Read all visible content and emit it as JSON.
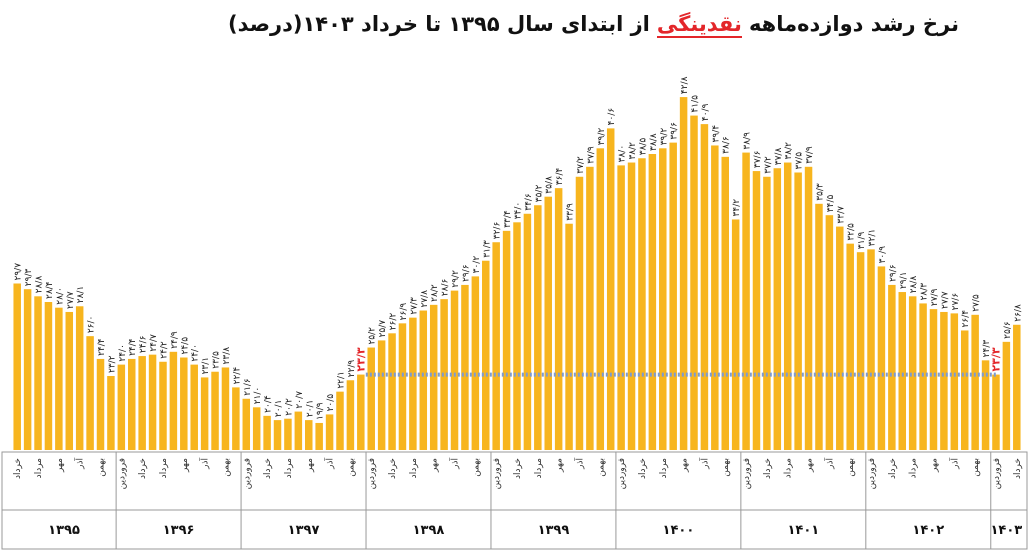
{
  "chart_data": {
    "type": "bar",
    "title": {
      "before": "نرخ رشد دوازده‌ماهه",
      "highlight": "نقدینگی",
      "after": "از ابتدای سال ۱۳۹۵ تا خرداد ۱۴۰۳(درصد)"
    },
    "categories": [
      "خرداد",
      null,
      "مرداد",
      null,
      "مهر",
      null,
      "آذر",
      null,
      "بهمن",
      null,
      "فروردین",
      null,
      "خرداد",
      null,
      "مرداد",
      null,
      "مهر",
      null,
      "آذر",
      null,
      "بهمن",
      null,
      "فروردین",
      null,
      "خرداد",
      null,
      "مرداد",
      null,
      "مهر",
      null,
      "آذر",
      null,
      "بهمن",
      null,
      "فروردین",
      null,
      "خرداد",
      null,
      "مرداد",
      null,
      "مهر",
      null,
      "آذر",
      null,
      "بهمن",
      null,
      "فروردین",
      null,
      "خرداد",
      null,
      "مرداد",
      null,
      "مهر",
      null,
      "آذر",
      null,
      "بهمن",
      null,
      "فروردین",
      null,
      "خرداد",
      null,
      "مرداد",
      null,
      "مهر",
      null,
      "آذر",
      null,
      "بهمن",
      null,
      "فروردین",
      null,
      "خرداد",
      null,
      "مرداد",
      null,
      "مهر",
      null,
      "آذر",
      null,
      "بهمن",
      null,
      "فروردین",
      null,
      "خرداد",
      null,
      "مرداد",
      null,
      "مهر",
      null,
      "آذر",
      null,
      "بهمن",
      null,
      "فروردین",
      null,
      "خرداد"
    ],
    "values": [
      29.7,
      29.3,
      28.8,
      28.4,
      28.0,
      27.7,
      28.1,
      26.0,
      24.4,
      23.2,
      24.0,
      24.4,
      24.6,
      24.7,
      24.2,
      24.9,
      24.5,
      24.0,
      23.1,
      23.5,
      23.8,
      22.4,
      21.6,
      21.0,
      20.4,
      20.1,
      20.2,
      20.7,
      20.1,
      19.9,
      20.5,
      22.1,
      22.9,
      23.3,
      25.2,
      25.7,
      26.2,
      26.9,
      27.3,
      27.8,
      28.2,
      28.6,
      29.2,
      29.6,
      30.2,
      31.3,
      32.6,
      33.4,
      34.0,
      34.6,
      35.2,
      35.8,
      36.4,
      33.9,
      37.2,
      37.9,
      39.2,
      40.6,
      38.0,
      38.2,
      38.5,
      38.8,
      39.2,
      39.6,
      42.8,
      41.5,
      40.9,
      39.4,
      38.6,
      34.2,
      38.9,
      37.6,
      37.2,
      37.8,
      38.2,
      37.5,
      37.9,
      35.3,
      34.5,
      33.7,
      32.5,
      31.9,
      32.1,
      30.9,
      29.6,
      29.1,
      28.8,
      28.3,
      27.9,
      27.7,
      27.6,
      26.4,
      27.5,
      24.3,
      23.3,
      25.6,
      26.8
    ],
    "value_labels": [
      "۲۹/۷",
      "۲۹/۳",
      "۲۸/۸",
      "۲۸/۴",
      "۲۸/۰",
      "۲۷/۷",
      "۲۸/۱",
      "۲۶/۰",
      "۲۴/۴",
      "۲۳/۲",
      "۲۴/۰",
      "۲۴/۴",
      "۲۴/۶",
      "۲۴/۷",
      "۲۴/۲",
      "۲۴/۹",
      "۲۴/۵",
      "۲۴/۰",
      "۲۳/۱",
      "۲۳/۵",
      "۲۳/۸",
      "۲۲/۴",
      "۲۱/۶",
      "۲۱/۰",
      "۲۰/۴",
      "۲۰/۱",
      "۲۰/۲",
      "۲۰/۷",
      "۲۰/۱",
      "۱۹/۹",
      "۲۰/۵",
      "۲۲/۱",
      "۲۲/۹",
      "۲۳/۳",
      "۲۵/۲",
      "۲۵/۷",
      "۲۶/۲",
      "۲۶/۹",
      "۲۷/۳",
      "۲۷/۸",
      "۲۸/۲",
      "۲۸/۶",
      "۲۹/۲",
      "۲۹/۶",
      "۳۰/۲",
      "۳۱/۳",
      "۳۲/۶",
      "۳۳/۴",
      "۳۴/۰",
      "۳۴/۶",
      "۳۵/۲",
      "۳۵/۸",
      "۳۶/۴",
      "۳۳/۹",
      "۳۷/۲",
      "۳۷/۹",
      "۳۹/۲",
      "۴۰/۶",
      "۳۸/۰",
      "۳۸/۲",
      "۳۸/۵",
      "۳۸/۸",
      "۳۹/۲",
      "۳۹/۶",
      "۴۲/۸",
      "۴۱/۵",
      "۴۰/۹",
      "۳۹/۴",
      "۳۸/۶",
      "۳۴/۲",
      "۳۸/۹",
      "۳۷/۶",
      "۳۷/۲",
      "۳۷/۸",
      "۳۸/۲",
      "۳۷/۵",
      "۳۷/۹",
      "۳۵/۳",
      "۳۴/۵",
      "۳۳/۷",
      "۳۲/۵",
      "۳۱/۹",
      "۳۲/۱",
      "۳۰/۹",
      "۲۹/۶",
      "۲۹/۱",
      "۲۸/۸",
      "۲۸/۳",
      "۲۷/۹",
      "۲۷/۷",
      "۲۷/۶",
      "۲۶/۴",
      "۲۷/۵",
      "۲۴/۳",
      "۲۳/۳",
      "۲۵/۶",
      "۲۶/۸"
    ],
    "years": [
      "۱۳۹۵",
      "۱۳۹۶",
      "۱۳۹۷",
      "۱۳۹۸",
      "۱۳۹۹",
      "۱۴۰۰",
      "۱۴۰۱",
      "۱۴۰۲",
      "۱۴۰۳"
    ],
    "color": "#f7b51e",
    "highlights": [
      33,
      94
    ],
    "highlight_color": "#e3262a",
    "reference_color": "#7e9bcf",
    "ylim": [
      18,
      44
    ]
  }
}
